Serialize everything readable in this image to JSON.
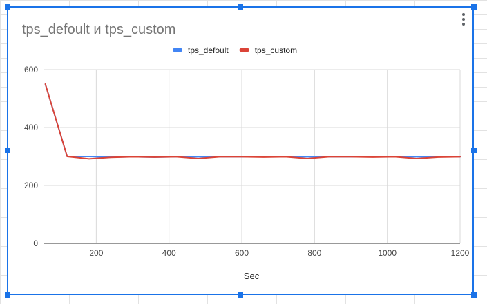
{
  "chart_data": {
    "type": "line",
    "title": "tps_defoult и tps_custom",
    "xlabel": "Sec",
    "ylabel": "",
    "xlim": [
      55,
      1200
    ],
    "ylim": [
      0,
      600
    ],
    "x_ticks": [
      200,
      400,
      600,
      800,
      1000,
      1200
    ],
    "y_ticks": [
      0,
      200,
      400,
      600
    ],
    "grid": true,
    "legend_position": "top",
    "series": [
      {
        "name": "tps_defoult",
        "color": "#4285f4",
        "x": [
          60,
          120,
          180,
          240,
          300,
          360,
          420,
          480,
          540,
          600,
          660,
          720,
          780,
          840,
          900,
          960,
          1020,
          1080,
          1140,
          1200
        ],
        "y": [
          550,
          300,
          300,
          298,
          299,
          298,
          299,
          299,
          299,
          299,
          299,
          299,
          299,
          299,
          299,
          299,
          299,
          299,
          299,
          299
        ]
      },
      {
        "name": "tps_custom",
        "color": "#db4437",
        "x": [
          60,
          120,
          180,
          240,
          300,
          360,
          420,
          480,
          540,
          600,
          660,
          720,
          780,
          840,
          900,
          960,
          1020,
          1080,
          1140,
          1200
        ],
        "y": [
          550,
          300,
          292,
          297,
          299,
          298,
          299,
          293,
          299,
          299,
          298,
          299,
          293,
          299,
          299,
          298,
          299,
          293,
          298,
          299
        ]
      }
    ]
  }
}
